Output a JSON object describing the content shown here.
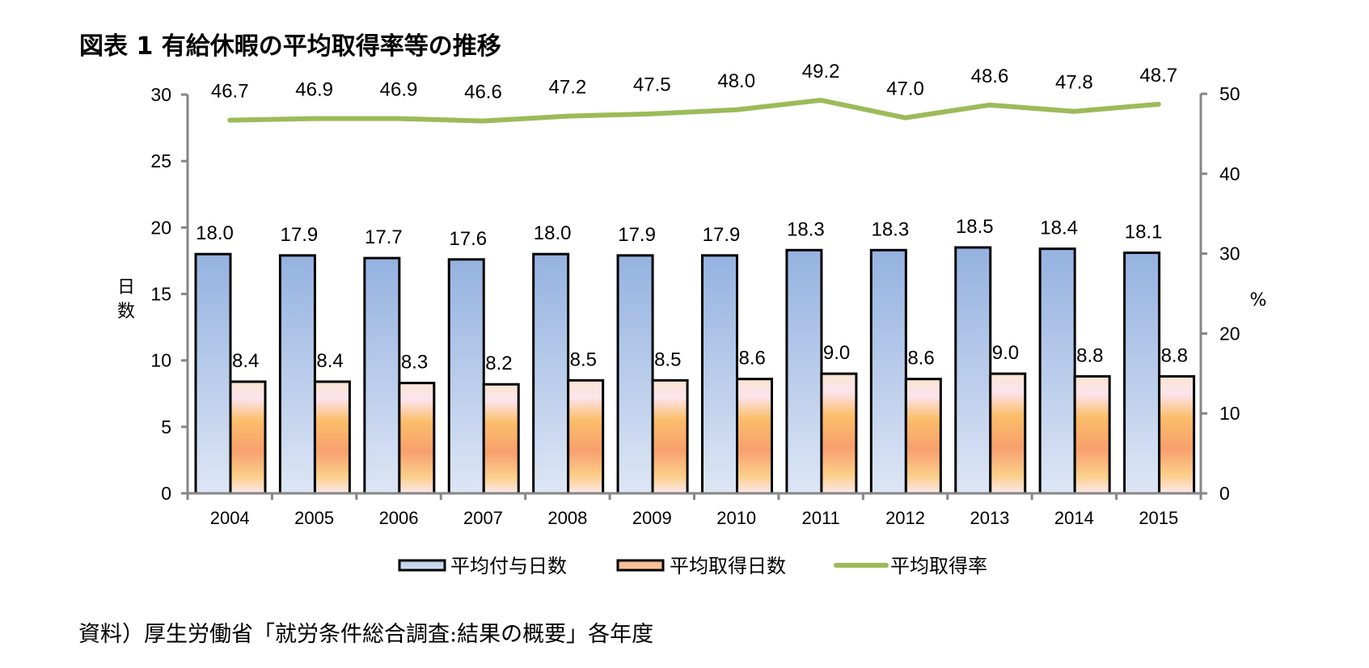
{
  "title": "図表 1 有給休暇の平均取得率等の推移",
  "footnote": "資料）厚生労働省「就労条件総合調査:結果の概要」各年度",
  "colors": {
    "given_days": "#9db5e3",
    "taken_days": "#f8a46f",
    "rate_line": "#9bbb59",
    "axis": "#868686"
  },
  "chart_data": {
    "type": "bar",
    "title": "図表 1 有給休暇の平均取得率等の推移",
    "categories": [
      "2004",
      "2005",
      "2006",
      "2007",
      "2008",
      "2009",
      "2010",
      "2011",
      "2012",
      "2013",
      "2014",
      "2015"
    ],
    "series": [
      {
        "name": "平均付与日数",
        "type": "bar",
        "axis": "left",
        "values": [
          18.0,
          17.9,
          17.7,
          17.6,
          18.0,
          17.9,
          17.9,
          18.3,
          18.3,
          18.5,
          18.4,
          18.1
        ],
        "labels": [
          "18.0",
          "17.9",
          "17.7",
          "17.6",
          "18.0",
          "17.9",
          "17.9",
          "18.3",
          "18.3",
          "18.5",
          "18.4",
          "18.1"
        ]
      },
      {
        "name": "平均取得日数",
        "type": "bar",
        "axis": "left",
        "values": [
          8.4,
          8.4,
          8.3,
          8.2,
          8.5,
          8.5,
          8.6,
          9.0,
          8.6,
          9.0,
          8.8,
          8.8
        ],
        "labels": [
          "8.4",
          "8.4",
          "8.3",
          "8.2",
          "8.5",
          "8.5",
          "8.6",
          "9.0",
          "8.6",
          "9.0",
          "8.8",
          "8.8"
        ]
      },
      {
        "name": "平均取得率",
        "type": "line",
        "axis": "right",
        "values": [
          46.7,
          46.9,
          46.9,
          46.6,
          47.2,
          47.5,
          48.0,
          49.2,
          47.0,
          48.6,
          47.8,
          48.7
        ],
        "labels": [
          "46.7",
          "46.9",
          "46.9",
          "46.6",
          "47.2",
          "47.5",
          "48.0",
          "49.2",
          "47.0",
          "48.6",
          "47.8",
          "48.7"
        ]
      }
    ],
    "ylabel": "日数",
    "y2label": "%",
    "ylim": [
      0,
      30
    ],
    "y2lim": [
      0,
      50
    ],
    "yticks": [
      "0",
      "5",
      "10",
      "15",
      "20",
      "25",
      "30"
    ],
    "y2ticks": [
      "0",
      "10",
      "20",
      "30",
      "40",
      "50"
    ],
    "grid": false,
    "legend": "bottom"
  }
}
